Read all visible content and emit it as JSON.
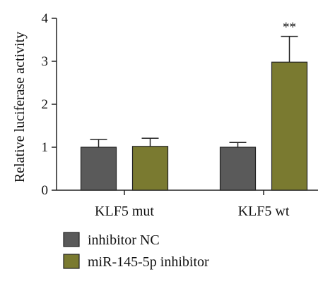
{
  "chart_data": {
    "type": "bar",
    "ylabel": "Relative luciferase activity",
    "ylim": [
      0,
      4
    ],
    "yticks": [
      "0",
      "1",
      "2",
      "3",
      "4"
    ],
    "categories": [
      "KLF5 mut",
      "KLF5 wt"
    ],
    "series": [
      {
        "name": "inhibitor NC",
        "color": "#5a5a5a",
        "values": [
          1.0,
          1.0
        ],
        "errors": [
          0.18,
          0.11
        ],
        "annotations": [
          "",
          ""
        ]
      },
      {
        "name": "miR-145-5p inhibitor",
        "color": "#7a7a30",
        "values": [
          1.02,
          2.98
        ],
        "errors": [
          0.19,
          0.6
        ],
        "annotations": [
          "",
          "**"
        ]
      }
    ],
    "legend_position": "bottom-left",
    "grid": false
  }
}
